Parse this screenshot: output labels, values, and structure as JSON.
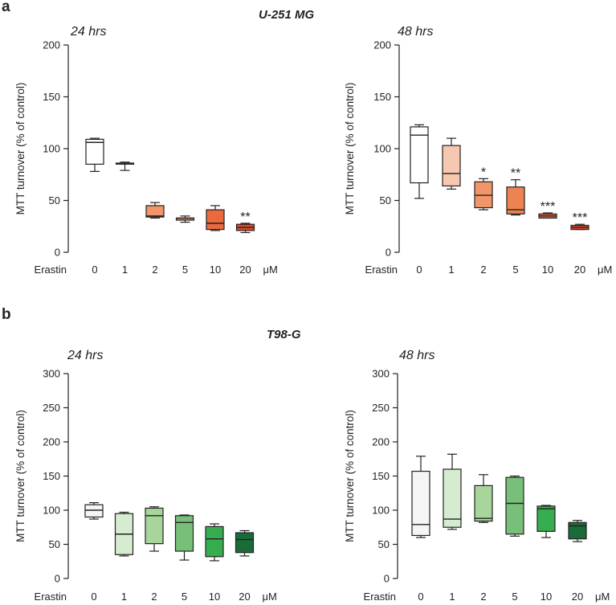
{
  "panels": {
    "a": {
      "letter": "a",
      "cell_line": "U-251 MG"
    },
    "b": {
      "letter": "b",
      "cell_line": "T98-G"
    }
  },
  "chart_data": [
    {
      "type": "box",
      "panel": "a",
      "cell_line": "U-251 MG",
      "timepoint": "24 hrs",
      "ylabel": "MTT turnover (% of control)",
      "xlabel_prefix": "Erastin",
      "xlabel_unit": "μM",
      "categories": [
        "0",
        "1",
        "2",
        "5",
        "10",
        "20"
      ],
      "ylim": [
        0,
        200
      ],
      "yticks": [
        0,
        50,
        100,
        150,
        200
      ],
      "colors": [
        "#ffffff",
        "#ffffff",
        "#f2966a",
        "#ec8350",
        "#ea6a3e",
        "#e64a2a"
      ],
      "boxes": [
        {
          "min": 78,
          "q1": 85,
          "median": 106,
          "q3": 109,
          "max": 110
        },
        {
          "min": 79,
          "q1": 85,
          "median": 86,
          "q3": 86,
          "max": 87
        },
        {
          "min": 33,
          "q1": 34,
          "median": 35,
          "q3": 45,
          "max": 48
        },
        {
          "min": 29,
          "q1": 31,
          "median": 33,
          "q3": 33,
          "max": 35
        },
        {
          "min": 21,
          "q1": 22,
          "median": 28,
          "q3": 41,
          "max": 45
        },
        {
          "min": 19,
          "q1": 21,
          "median": 24,
          "q3": 27,
          "max": 28
        }
      ],
      "significance": [
        "",
        "",
        "",
        "",
        "",
        "**"
      ]
    },
    {
      "type": "box",
      "panel": "a",
      "cell_line": "U-251 MG",
      "timepoint": "48 hrs",
      "ylabel": "MTT turnover (% of control)",
      "xlabel_prefix": "Erastin",
      "xlabel_unit": "μM",
      "categories": [
        "0",
        "1",
        "2",
        "5",
        "10",
        "20"
      ],
      "ylim": [
        0,
        200
      ],
      "yticks": [
        0,
        50,
        100,
        150,
        200
      ],
      "colors": [
        "#ffffff",
        "#f6c8b0",
        "#f2966a",
        "#ec8350",
        "#ea6a3e",
        "#e64a2a"
      ],
      "boxes": [
        {
          "min": 52,
          "q1": 67,
          "median": 113,
          "q3": 121,
          "max": 123
        },
        {
          "min": 61,
          "q1": 64,
          "median": 76,
          "q3": 103,
          "max": 110
        },
        {
          "min": 41,
          "q1": 43,
          "median": 55,
          "q3": 68,
          "max": 71
        },
        {
          "min": 36,
          "q1": 37,
          "median": 41,
          "q3": 63,
          "max": 70
        },
        {
          "min": 33,
          "q1": 33,
          "median": 35,
          "q3": 37,
          "max": 38
        },
        {
          "min": 22,
          "q1": 22,
          "median": 24,
          "q3": 26,
          "max": 27
        }
      ],
      "significance": [
        "",
        "",
        "*",
        "**",
        "***",
        "***"
      ]
    },
    {
      "type": "box",
      "panel": "b",
      "cell_line": "T98-G",
      "timepoint": "24 hrs",
      "ylabel": "MTT turnover (% of control)",
      "xlabel_prefix": "Erastin",
      "xlabel_unit": "μM",
      "categories": [
        "0",
        "1",
        "2",
        "5",
        "10",
        "20"
      ],
      "ylim": [
        0,
        300
      ],
      "yticks": [
        0,
        50,
        100,
        150,
        200,
        250,
        300
      ],
      "colors": [
        "#f5f5f5",
        "#d6ecd0",
        "#a7d59c",
        "#78c07a",
        "#36ad4f",
        "#1a6b38"
      ],
      "boxes": [
        {
          "min": 87,
          "q1": 90,
          "median": 100,
          "q3": 108,
          "max": 111
        },
        {
          "min": 33,
          "q1": 35,
          "median": 65,
          "q3": 95,
          "max": 97
        },
        {
          "min": 40,
          "q1": 51,
          "median": 92,
          "q3": 103,
          "max": 105
        },
        {
          "min": 27,
          "q1": 40,
          "median": 82,
          "q3": 92,
          "max": 93
        },
        {
          "min": 26,
          "q1": 32,
          "median": 58,
          "q3": 76,
          "max": 80
        },
        {
          "min": 33,
          "q1": 38,
          "median": 57,
          "q3": 67,
          "max": 70
        }
      ],
      "significance": [
        "",
        "",
        "",
        "",
        "",
        ""
      ]
    },
    {
      "type": "box",
      "panel": "b",
      "cell_line": "T98-G",
      "timepoint": "48 hrs",
      "ylabel": "MTT turnover (% of control)",
      "xlabel_prefix": "Erastin",
      "xlabel_unit": "μM",
      "categories": [
        "0",
        "1",
        "2",
        "5",
        "10",
        "20"
      ],
      "ylim": [
        0,
        300
      ],
      "yticks": [
        0,
        50,
        100,
        150,
        200,
        250,
        300
      ],
      "colors": [
        "#f5f5f5",
        "#d6ecd0",
        "#a7d59c",
        "#78c07a",
        "#36ad4f",
        "#1a6b38"
      ],
      "boxes": [
        {
          "min": 60,
          "q1": 63,
          "median": 79,
          "q3": 157,
          "max": 179
        },
        {
          "min": 72,
          "q1": 75,
          "median": 87,
          "q3": 160,
          "max": 182
        },
        {
          "min": 82,
          "q1": 84,
          "median": 88,
          "q3": 136,
          "max": 152
        },
        {
          "min": 62,
          "q1": 65,
          "median": 110,
          "q3": 148,
          "max": 150
        },
        {
          "min": 60,
          "q1": 69,
          "median": 102,
          "q3": 106,
          "max": 107
        },
        {
          "min": 54,
          "q1": 58,
          "median": 77,
          "q3": 82,
          "max": 85
        }
      ],
      "significance": [
        "",
        "",
        "",
        "",
        "",
        ""
      ]
    }
  ]
}
